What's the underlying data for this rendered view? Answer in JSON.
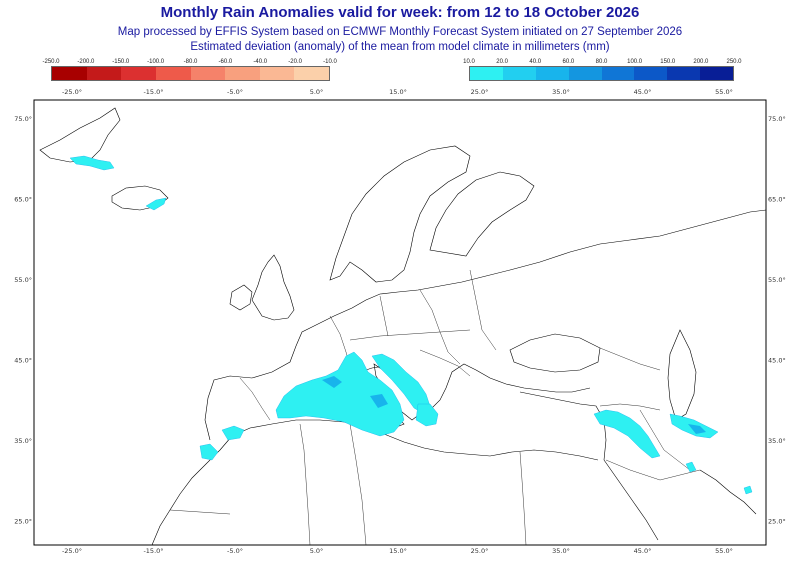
{
  "header": {
    "title": "Monthly Rain Anomalies valid for week: from 12 to 18 October 2026",
    "subtitle1": "Map processed by EFFIS System based on ECMWF Monthly Forecast System initiated on 27 September 2026",
    "subtitle2": "Estimated deviation (anomaly) of the mean from model climate in millimeters (mm)"
  },
  "legend": {
    "negative": {
      "labels": [
        "-250.0",
        "-200.0",
        "-150.0",
        "-100.0",
        "-80.0",
        "-60.0",
        "-40.0",
        "-20.0",
        "-10.0"
      ],
      "colors": [
        "#a80000",
        "#c41a1a",
        "#dc3030",
        "#ee5a4a",
        "#f5826a",
        "#f8a07e",
        "#fab894",
        "#fbd0aa"
      ]
    },
    "positive": {
      "labels": [
        "10.0",
        "20.0",
        "40.0",
        "60.0",
        "80.0",
        "100.0",
        "150.0",
        "200.0",
        "250.0"
      ],
      "colors": [
        "#2ef0f2",
        "#22cff0",
        "#18b4ec",
        "#1496e0",
        "#1076d6",
        "#0c58c8",
        "#0a38b0",
        "#081e96"
      ]
    }
  },
  "map": {
    "lon_labels": [
      "-25.0°",
      "-15.0°",
      "-5.0°",
      "5.0°",
      "15.0°",
      "25.0°",
      "35.0°",
      "45.0°",
      "55.0°"
    ],
    "lat_labels": [
      "75.0°",
      "65.0°",
      "55.0°",
      "45.0°",
      "35.0°",
      "25.0°"
    ],
    "land_color": "#ffffff",
    "border_color": "#000000",
    "anomaly_color": "#2ef0f2"
  }
}
